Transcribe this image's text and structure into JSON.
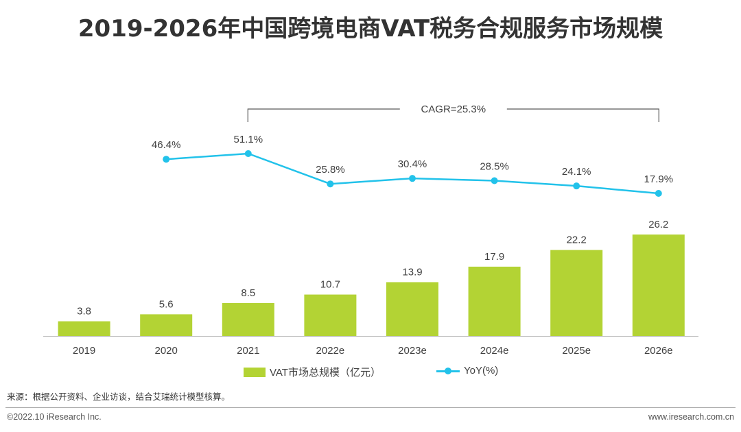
{
  "page": {
    "title": "2019-2026年中国跨境电商VAT税务合规服务市场规模",
    "source": "来源：根据公开资料、企业访谈，结合艾瑞统计模型核算。",
    "copyright": "©2022.10 iResearch Inc.",
    "website": "www.iresearch.com.cn"
  },
  "colors": {
    "bar": "#b3d334",
    "line": "#22c2ea",
    "axis": "#bfbfbf",
    "bracket": "#595959"
  },
  "chart_data": {
    "type": "bar",
    "categories": [
      "2019",
      "2020",
      "2021",
      "2022e",
      "2023e",
      "2024e",
      "2025e",
      "2026e"
    ],
    "series": [
      {
        "name": "VAT市场总规模（亿元）",
        "type": "bar",
        "values": [
          3.8,
          5.6,
          8.5,
          10.7,
          13.9,
          17.9,
          22.2,
          26.2
        ],
        "labels": [
          "3.8",
          "5.6",
          "8.5",
          "10.7",
          "13.9",
          "17.9",
          "22.2",
          "26.2"
        ]
      },
      {
        "name": "YoY(%)",
        "type": "line",
        "values": [
          null,
          46.4,
          51.1,
          25.8,
          30.4,
          28.5,
          24.1,
          17.9
        ],
        "labels": [
          "",
          "46.4%",
          "51.1%",
          "25.8%",
          "30.4%",
          "28.5%",
          "24.1%",
          "17.9%"
        ]
      }
    ],
    "annotation": {
      "text": "CAGR=25.3%",
      "from_category": "2021",
      "to_category": "2026e"
    },
    "bar_ylim": [
      0,
      26.2
    ],
    "line_ylim": [
      17.9,
      51.1
    ],
    "legend_position": "bottom",
    "grid": false
  }
}
